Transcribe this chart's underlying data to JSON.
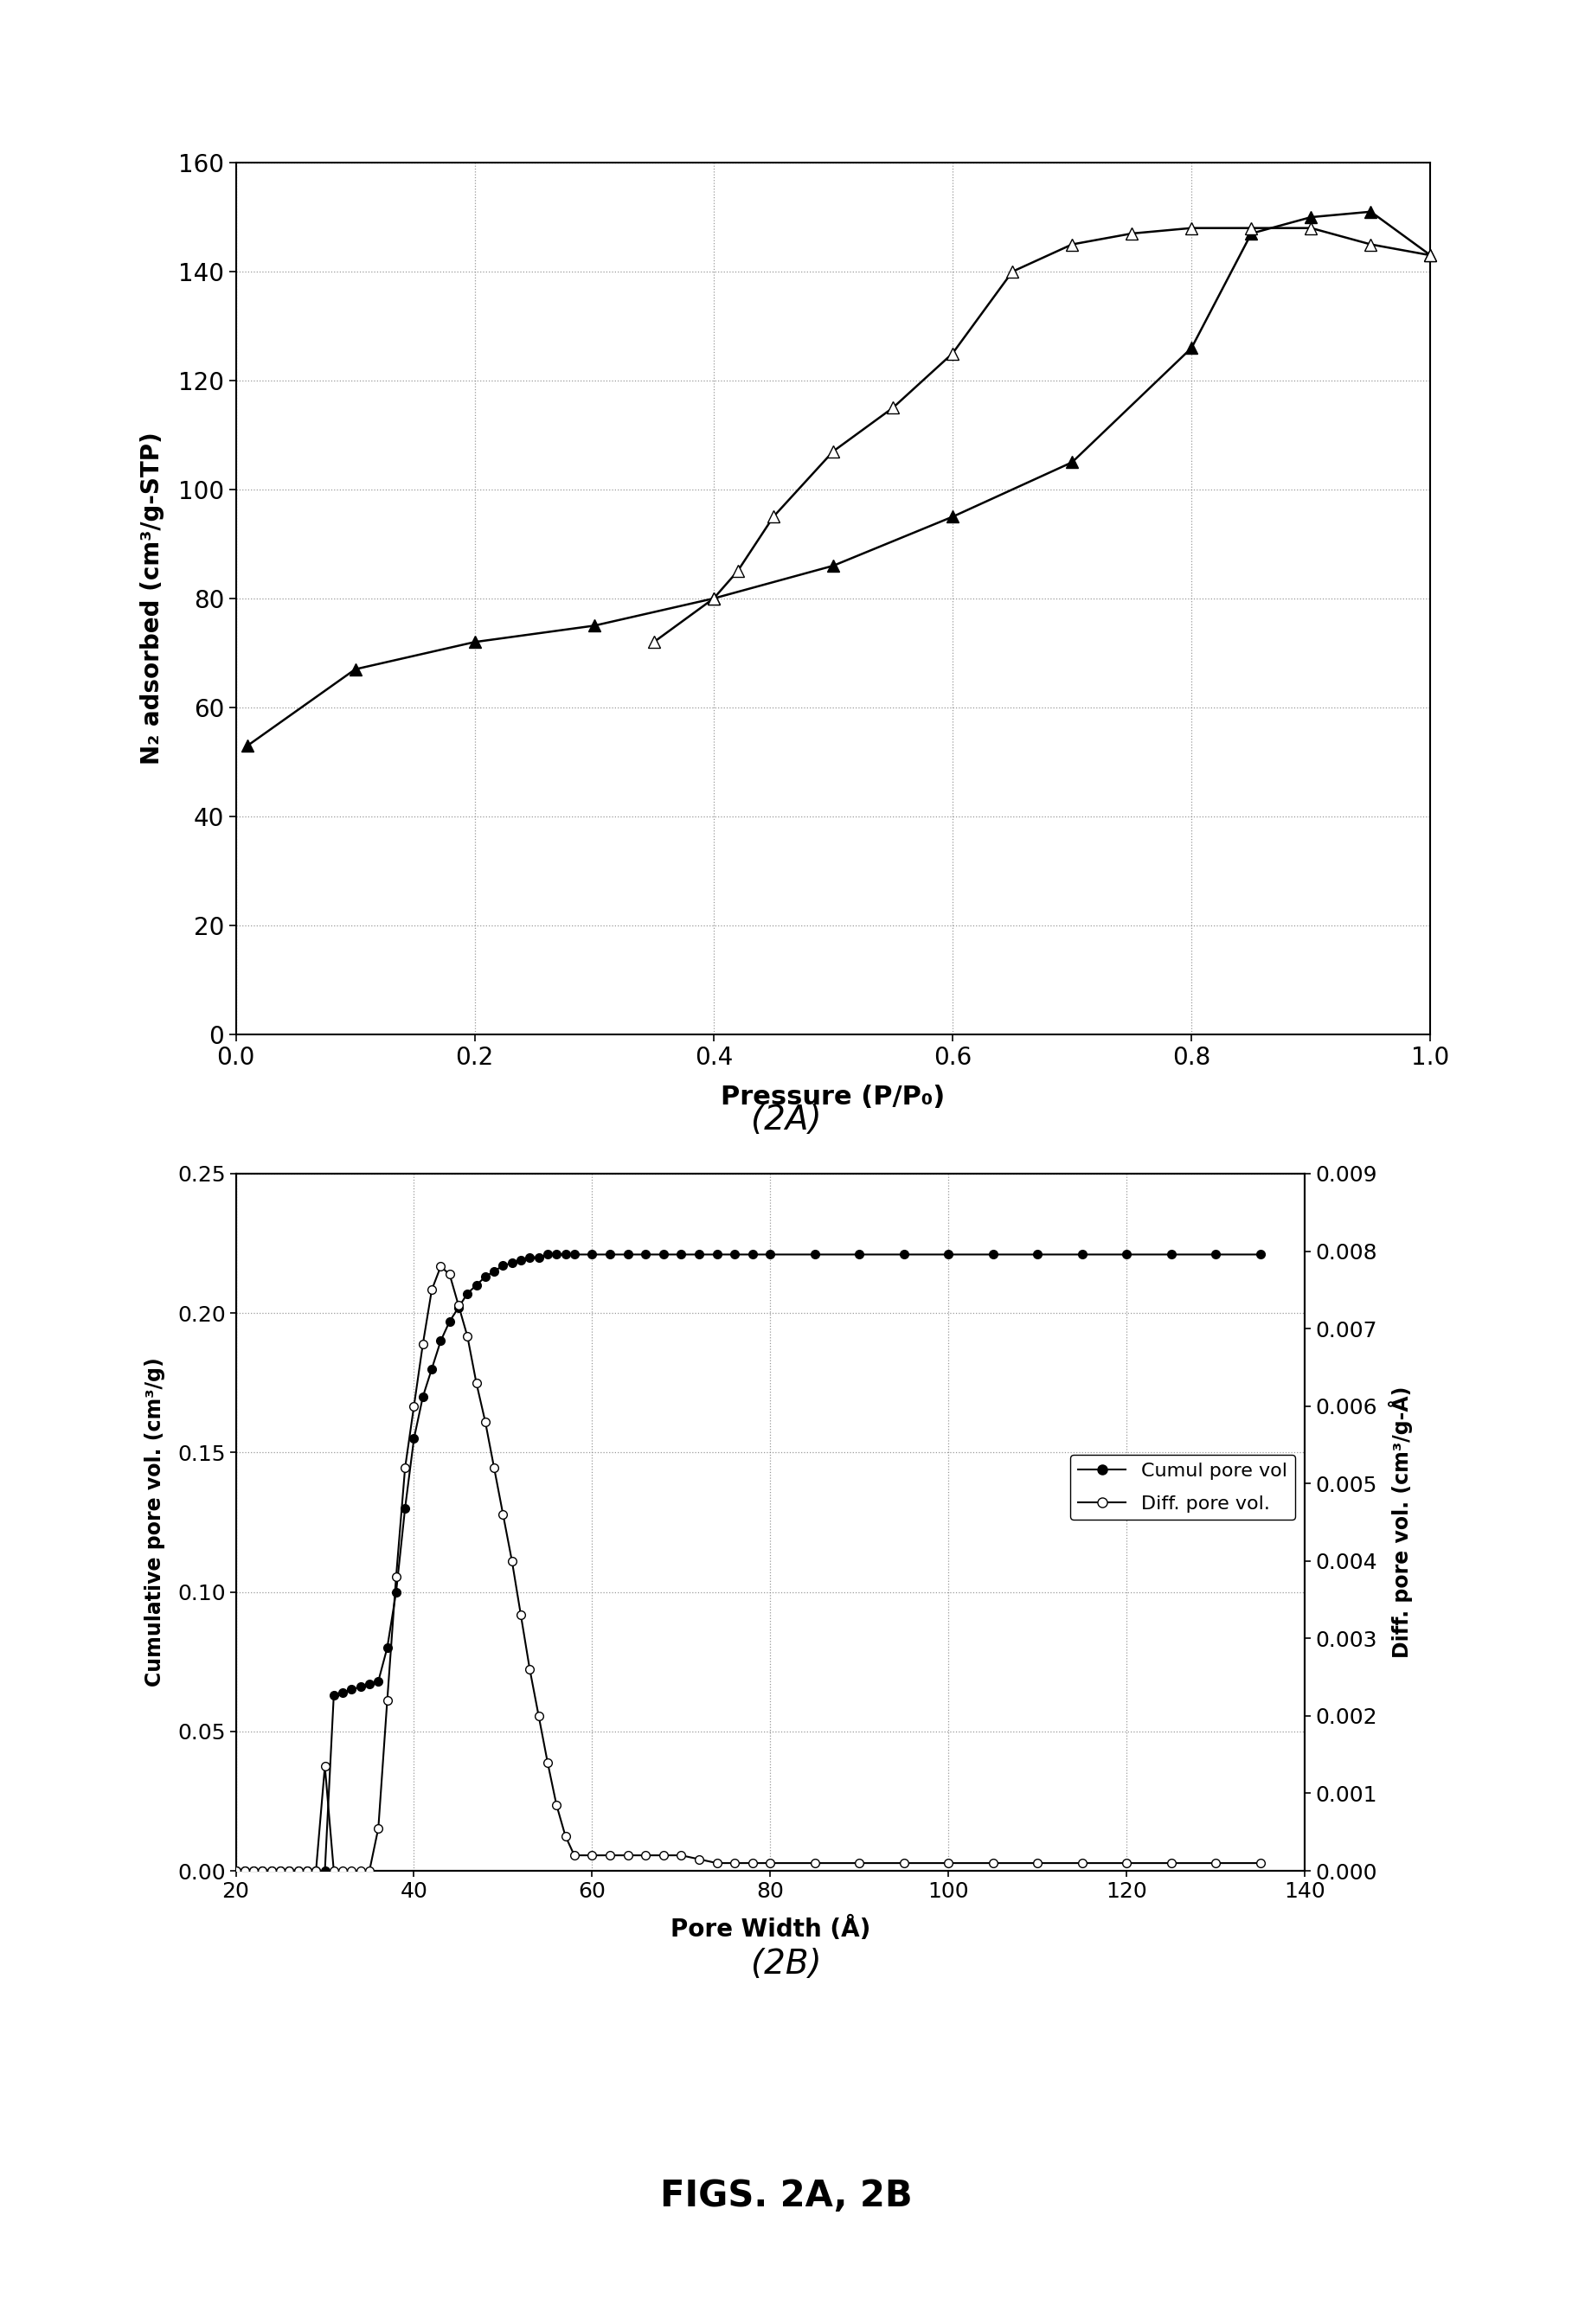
{
  "fig2a": {
    "adsorption_x": [
      0.01,
      0.1,
      0.2,
      0.3,
      0.4,
      0.5,
      0.6,
      0.7,
      0.8,
      0.85,
      0.9,
      0.95,
      1.0
    ],
    "adsorption_y": [
      53,
      67,
      72,
      75,
      80,
      86,
      95,
      105,
      126,
      147,
      150,
      151,
      143
    ],
    "desorption_x": [
      1.0,
      0.95,
      0.9,
      0.85,
      0.8,
      0.75,
      0.7,
      0.65,
      0.6,
      0.55,
      0.5,
      0.45,
      0.42,
      0.4,
      0.35
    ],
    "desorption_y": [
      143,
      145,
      148,
      148,
      148,
      147,
      145,
      140,
      125,
      115,
      107,
      95,
      85,
      80,
      72
    ],
    "xlabel": "Pressure (P/P₀)",
    "ylabel": "N₂ adsorbed (cm³/g-STP)",
    "xlim": [
      0,
      1
    ],
    "ylim": [
      0,
      160
    ],
    "xticks": [
      0,
      0.2,
      0.4,
      0.6,
      0.8,
      1
    ],
    "yticks": [
      0,
      20,
      40,
      60,
      80,
      100,
      120,
      140,
      160
    ],
    "label": "(2A)"
  },
  "fig2b": {
    "cumul_x": [
      20,
      21,
      22,
      23,
      24,
      25,
      26,
      27,
      28,
      29,
      30,
      31,
      32,
      33,
      34,
      35,
      36,
      37,
      38,
      39,
      40,
      41,
      42,
      43,
      44,
      45,
      46,
      47,
      48,
      49,
      50,
      51,
      52,
      53,
      54,
      55,
      56,
      57,
      58,
      60,
      62,
      64,
      66,
      68,
      70,
      72,
      74,
      76,
      78,
      80,
      85,
      90,
      95,
      100,
      105,
      110,
      115,
      120,
      125,
      130,
      135
    ],
    "cumul_y": [
      0.0,
      0.0,
      0.0,
      0.0,
      0.0,
      0.0,
      0.0,
      0.0,
      0.0,
      0.0,
      0.0,
      0.063,
      0.064,
      0.065,
      0.066,
      0.067,
      0.068,
      0.08,
      0.1,
      0.13,
      0.155,
      0.17,
      0.18,
      0.19,
      0.197,
      0.202,
      0.207,
      0.21,
      0.213,
      0.215,
      0.217,
      0.218,
      0.219,
      0.22,
      0.22,
      0.221,
      0.221,
      0.221,
      0.221,
      0.221,
      0.221,
      0.221,
      0.221,
      0.221,
      0.221,
      0.221,
      0.221,
      0.221,
      0.221,
      0.221,
      0.221,
      0.221,
      0.221,
      0.221,
      0.221,
      0.221,
      0.221,
      0.221,
      0.221,
      0.221,
      0.221
    ],
    "diff_x": [
      20,
      21,
      22,
      23,
      24,
      25,
      26,
      27,
      28,
      29,
      30,
      31,
      32,
      33,
      34,
      35,
      36,
      37,
      38,
      39,
      40,
      41,
      42,
      43,
      44,
      45,
      46,
      47,
      48,
      49,
      50,
      51,
      52,
      53,
      54,
      55,
      56,
      57,
      58,
      60,
      62,
      64,
      66,
      68,
      70,
      72,
      74,
      76,
      78,
      80,
      85,
      90,
      95,
      100,
      105,
      110,
      115,
      120,
      125,
      130,
      135
    ],
    "diff_y": [
      0.0,
      0.0,
      0.0,
      0.0,
      0.0,
      0.0,
      0.0,
      0.0,
      0.0,
      0.0,
      0.00135,
      0.0,
      0.0,
      0.0,
      0.0,
      0.0,
      0.00055,
      0.0022,
      0.0038,
      0.0052,
      0.006,
      0.0068,
      0.0075,
      0.0078,
      0.0077,
      0.0073,
      0.0069,
      0.0063,
      0.0058,
      0.0052,
      0.0046,
      0.004,
      0.0033,
      0.0026,
      0.002,
      0.0014,
      0.00085,
      0.00045,
      0.0002,
      0.0002,
      0.0002,
      0.0002,
      0.0002,
      0.0002,
      0.0002,
      0.00015,
      0.0001,
      0.0001,
      0.0001,
      0.0001,
      0.0001,
      0.0001,
      0.0001,
      0.0001,
      0.0001,
      0.0001,
      0.0001,
      0.0001,
      0.0001,
      0.0001,
      0.0001
    ],
    "xlabel": "Pore Width (Å)",
    "ylabel_left": "Cumulative pore vol. (cm³/g)",
    "ylabel_right": "Diff. pore vol. (cm³/g-Å)",
    "xlim": [
      20,
      140
    ],
    "ylim_left": [
      0,
      0.25
    ],
    "ylim_right": [
      0,
      0.009
    ],
    "xticks": [
      20,
      40,
      60,
      80,
      100,
      120,
      140
    ],
    "yticks_left": [
      0,
      0.05,
      0.1,
      0.15,
      0.2,
      0.25
    ],
    "yticks_right": [
      0,
      0.001,
      0.002,
      0.003,
      0.004,
      0.005,
      0.006,
      0.007,
      0.008,
      0.009
    ],
    "label": "(2B)",
    "legend_cumul": "Cumul pore vol",
    "legend_diff": "Diff. pore vol."
  },
  "fig_label": "FIGS. 2A, 2B",
  "background_color": "#ffffff"
}
